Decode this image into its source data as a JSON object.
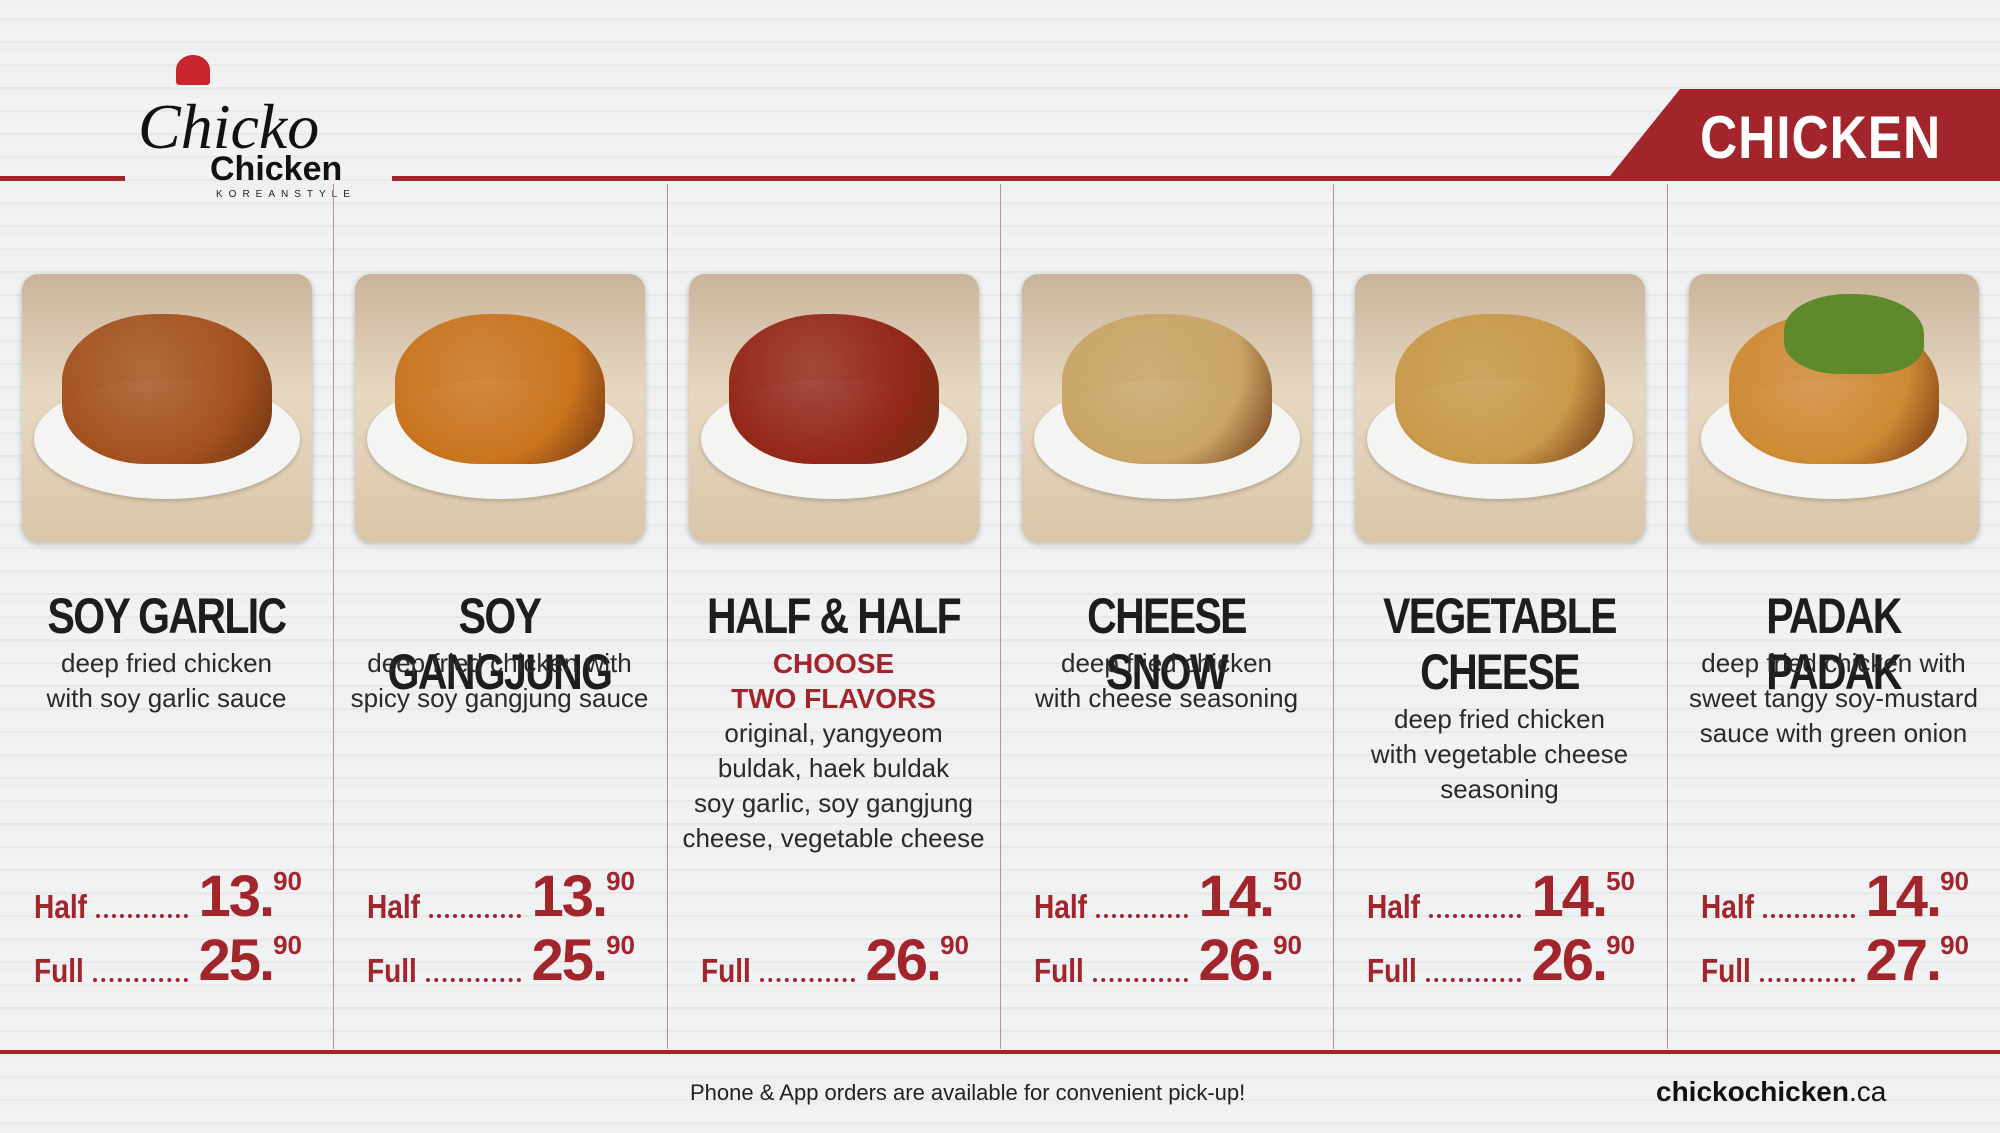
{
  "logo": {
    "script": "Chicko",
    "word": "Chicken",
    "tagline": "KOREANSTYLE"
  },
  "category": "CHICKEN",
  "price_labels": {
    "half": "Half",
    "full": "Full"
  },
  "items": [
    {
      "name": [
        "SOY GARLIC"
      ],
      "highlight": [],
      "description": [
        "deep fried chicken",
        "with soy garlic sauce"
      ],
      "half": {
        "main": "13.",
        "cents": "90"
      },
      "full": {
        "main": "25.",
        "cents": "90"
      }
    },
    {
      "name": [
        "SOY GANGJUNG"
      ],
      "highlight": [],
      "description": [
        "deep fried chicken with",
        "spicy soy gangjung sauce"
      ],
      "half": {
        "main": "13.",
        "cents": "90"
      },
      "full": {
        "main": "25.",
        "cents": "90"
      }
    },
    {
      "name": [
        "HALF & HALF"
      ],
      "highlight": [
        "CHOOSE",
        "TWO FLAVORS"
      ],
      "description": [
        "original, yangyeom",
        "buldak, haek buldak",
        "soy garlic, soy gangjung",
        "cheese, vegetable cheese"
      ],
      "half": null,
      "full": {
        "main": "26.",
        "cents": "90"
      }
    },
    {
      "name": [
        "CHEESE SNOW"
      ],
      "highlight": [],
      "description": [
        "deep fried chicken",
        "with cheese seasoning"
      ],
      "half": {
        "main": "14.",
        "cents": "50"
      },
      "full": {
        "main": "26.",
        "cents": "90"
      }
    },
    {
      "name": [
        "VEGETABLE",
        "CHEESE"
      ],
      "highlight": [],
      "description": [
        "deep fried chicken",
        "with vegetable cheese",
        "seasoning"
      ],
      "half": {
        "main": "14.",
        "cents": "50"
      },
      "full": {
        "main": "26.",
        "cents": "90"
      }
    },
    {
      "name": [
        "PADAK PADAK"
      ],
      "highlight": [],
      "description": [
        "deep fried chicken with",
        "sweet tangy soy-mustard",
        "sauce with green onion"
      ],
      "half": {
        "main": "14.",
        "cents": "90"
      },
      "full": {
        "main": "27.",
        "cents": "90"
      }
    }
  ],
  "footer": {
    "note": "Phone & App orders are available for convenient pick-up!",
    "site": "chickochicken",
    "tld": ".ca"
  }
}
